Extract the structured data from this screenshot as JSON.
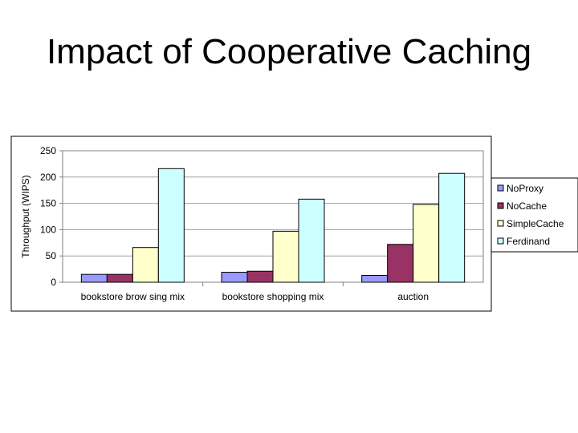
{
  "slide": {
    "title": "Impact of Cooperative Caching"
  },
  "chart_data": {
    "type": "bar",
    "title": "",
    "xlabel": "",
    "ylabel": "Throughput (WIPS)",
    "categories": [
      "bookstore brow sing mix",
      "bookstore shopping mix",
      "auction"
    ],
    "series": [
      {
        "name": "NoProxy",
        "values": [
          15,
          19,
          13
        ],
        "color": "#9999ff"
      },
      {
        "name": "NoCache",
        "values": [
          15,
          21,
          72
        ],
        "color": "#993366"
      },
      {
        "name": "SimpleCache",
        "values": [
          66,
          97,
          148
        ],
        "color": "#ffffcc"
      },
      {
        "name": "Ferdinand",
        "values": [
          216,
          158,
          207
        ],
        "color": "#ccffff"
      }
    ],
    "ylim": [
      0,
      250
    ],
    "yticks": [
      0,
      50,
      100,
      150,
      200,
      250
    ],
    "grid": true,
    "legend": "right"
  }
}
